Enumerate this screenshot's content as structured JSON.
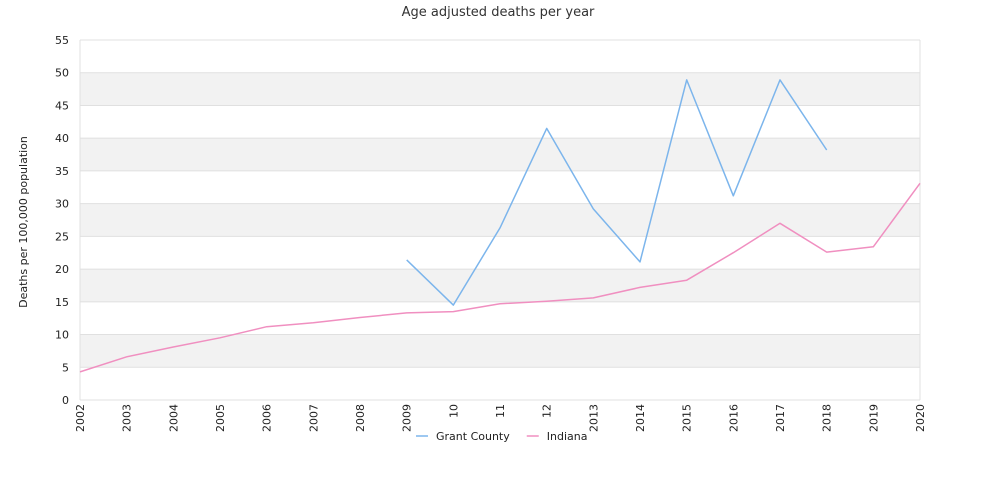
{
  "chart_data": {
    "type": "line",
    "title": "Age adjusted deaths per year",
    "xlabel": "",
    "ylabel": "Deaths per 100,000 population",
    "ylim": [
      0,
      55
    ],
    "yticks": [
      0,
      5,
      10,
      15,
      20,
      25,
      30,
      35,
      40,
      45,
      50,
      55
    ],
    "x": [
      "2002",
      "2003",
      "2004",
      "2005",
      "2006",
      "2007",
      "2008",
      "2009",
      "10",
      "11",
      "12",
      "2013",
      "2014",
      "2015",
      "2016",
      "2017",
      "2018",
      "2019",
      "2020"
    ],
    "grid": "horizontal alternating bands",
    "legend_position": "bottom-center",
    "series": [
      {
        "name": "Grant County",
        "color": "#7cb5ec",
        "values": [
          null,
          null,
          null,
          null,
          null,
          null,
          null,
          21.4,
          14.5,
          26.3,
          41.5,
          29.2,
          21.1,
          48.9,
          31.2,
          48.9,
          38.2,
          null,
          null
        ]
      },
      {
        "name": "Indiana",
        "color": "#f08fc0",
        "values": [
          4.3,
          6.6,
          8.1,
          9.5,
          11.2,
          11.8,
          12.6,
          13.3,
          13.5,
          14.7,
          15.1,
          15.6,
          17.2,
          18.3,
          22.5,
          27.0,
          22.6,
          23.4,
          33.1
        ]
      }
    ]
  }
}
